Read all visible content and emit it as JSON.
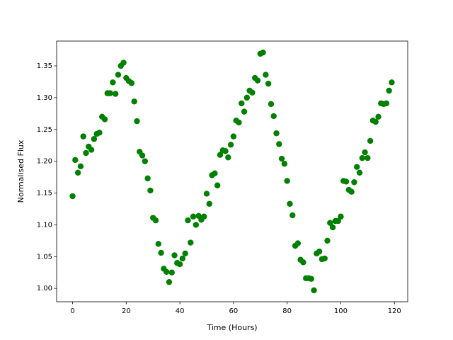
{
  "chart_data": {
    "type": "scatter",
    "xlabel": "Time (Hours)",
    "ylabel": "Normalised Flux",
    "color": "#008000",
    "x": [
      0,
      1,
      2,
      3,
      4,
      5,
      6,
      7,
      8,
      9,
      10,
      11,
      12,
      13,
      14,
      15,
      16,
      17,
      18,
      19,
      20,
      21,
      22,
      23,
      24,
      25,
      26,
      27,
      28,
      29,
      30,
      31,
      32,
      33,
      34,
      35,
      36,
      37,
      38,
      39,
      40,
      41,
      42,
      43,
      44,
      45,
      46,
      47,
      48,
      49,
      50,
      51,
      52,
      53,
      54,
      55,
      56,
      57,
      58,
      59,
      60,
      61,
      62,
      63,
      64,
      65,
      66,
      67,
      68,
      69,
      70,
      71,
      72,
      73,
      74,
      75,
      76,
      77,
      78,
      79,
      80,
      81,
      82,
      83,
      84,
      85,
      86,
      87,
      88,
      89,
      90,
      91,
      92,
      93,
      94,
      95,
      96,
      97,
      98,
      99,
      100,
      101,
      102,
      103,
      104,
      105,
      106,
      107,
      108,
      109,
      110,
      111,
      112,
      113,
      114,
      115,
      116,
      117,
      118,
      119
    ],
    "values": [
      1.145,
      1.202,
      1.182,
      1.192,
      1.239,
      1.213,
      1.223,
      1.218,
      1.235,
      1.243,
      1.245,
      1.27,
      1.266,
      1.307,
      1.307,
      1.324,
      1.306,
      1.336,
      1.35,
      1.355,
      1.331,
      1.326,
      1.323,
      1.294,
      1.263,
      1.215,
      1.209,
      1.2,
      1.173,
      1.154,
      1.111,
      1.107,
      1.07,
      1.056,
      1.031,
      1.026,
      1.01,
      1.025,
      1.052,
      1.04,
      1.038,
      1.047,
      1.055,
      1.107,
      1.072,
      1.113,
      1.1,
      1.114,
      1.108,
      1.113,
      1.149,
      1.133,
      1.178,
      1.181,
      1.162,
      1.21,
      1.217,
      1.216,
      1.206,
      1.226,
      1.239,
      1.264,
      1.261,
      1.291,
      1.278,
      1.3,
      1.311,
      1.308,
      1.331,
      1.327,
      1.369,
      1.371,
      1.336,
      1.322,
      1.29,
      1.271,
      1.244,
      1.227,
      1.204,
      1.196,
      1.169,
      1.133,
      1.115,
      1.067,
      1.071,
      1.045,
      1.041,
      1.016,
      1.016,
      1.015,
      0.997,
      1.055,
      1.058,
      1.046,
      1.047,
      1.075,
      1.103,
      1.096,
      1.106,
      1.106,
      1.113,
      1.169,
      1.168,
      1.155,
      1.152,
      1.167,
      1.191,
      1.182,
      1.205,
      1.214,
      1.205,
      1.232,
      1.264,
      1.262,
      1.27,
      1.291,
      1.29,
      1.291,
      1.311,
      1.324
    ],
    "xlim": [
      -5.95,
      124.95
    ],
    "xticks": [
      0,
      20,
      40,
      60,
      80,
      100,
      120
    ],
    "ylim": [
      0.979,
      1.389
    ],
    "yticks": [
      {
        "value": 1.0,
        "label": "1.00"
      },
      {
        "value": 1.05,
        "label": "1.05"
      },
      {
        "value": 1.1,
        "label": "1.10"
      },
      {
        "value": 1.15,
        "label": "1.15"
      },
      {
        "value": 1.2,
        "label": "1.20"
      },
      {
        "value": 1.25,
        "label": "1.25"
      },
      {
        "value": 1.3,
        "label": "1.30"
      },
      {
        "value": 1.35,
        "label": "1.35"
      }
    ],
    "grid": false
  }
}
